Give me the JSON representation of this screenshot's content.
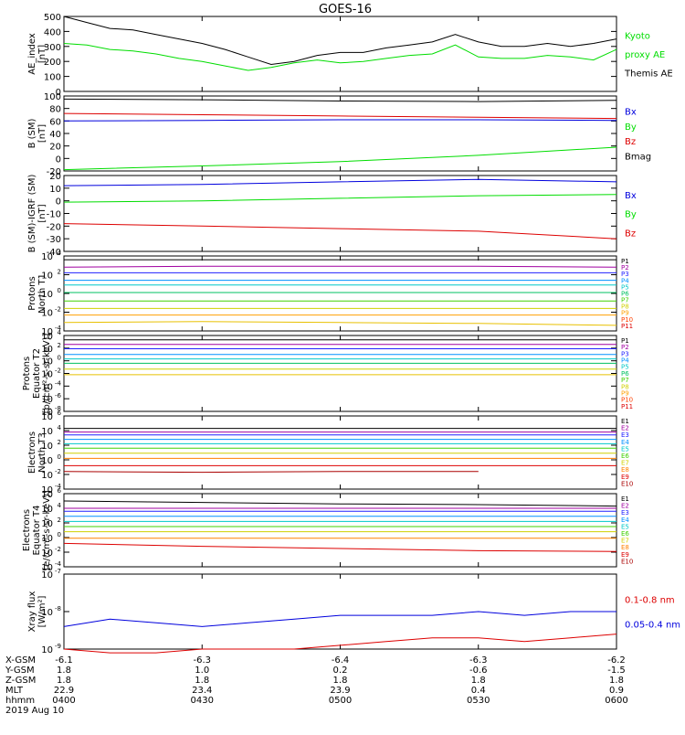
{
  "title": "GOES-16",
  "chart_data": [
    {
      "type": "line",
      "ylabel": "AE_index\n[nT]",
      "ylim": [
        0,
        500
      ],
      "yticks": [
        "0",
        "100",
        "200",
        "300",
        "400",
        "500"
      ],
      "x": [
        "0400",
        "0405",
        "0410",
        "0415",
        "0420",
        "0425",
        "0430",
        "0435",
        "0440",
        "0445",
        "0450",
        "0455",
        "0500",
        "0505",
        "0510",
        "0515",
        "0520",
        "0525",
        "0530",
        "0535",
        "0540",
        "0545",
        "0550",
        "0555",
        "0600"
      ],
      "series": [
        {
          "name": "Themis AE",
          "color": "#000000",
          "values": [
            500,
            460,
            420,
            410,
            380,
            350,
            320,
            280,
            230,
            180,
            200,
            240,
            260,
            260,
            290,
            310,
            330,
            380,
            330,
            300,
            300,
            320,
            300,
            320,
            350
          ]
        },
        {
          "name": "Kyoto proxy AE",
          "color": "#00dd00",
          "values": [
            320,
            310,
            280,
            270,
            250,
            220,
            200,
            170,
            140,
            160,
            190,
            210,
            190,
            200,
            220,
            240,
            250,
            310,
            230,
            220,
            220,
            240,
            230,
            210,
            280
          ]
        }
      ],
      "legend": [
        "Kyoto",
        "proxy AE",
        "Themis AE"
      ],
      "legend_colors": [
        "#00dd00",
        "#00dd00",
        "#000000"
      ]
    },
    {
      "type": "line",
      "ylabel": "B (SM)\n[nT]",
      "ylim": [
        -20,
        100
      ],
      "yticks": [
        "-20",
        "0",
        "20",
        "40",
        "60",
        "80",
        "100"
      ],
      "x": [
        "0400",
        "0430",
        "0500",
        "0530",
        "0600"
      ],
      "series": [
        {
          "name": "Bx",
          "color": "#0000dd",
          "values": [
            60,
            61,
            62,
            62,
            61
          ]
        },
        {
          "name": "By",
          "color": "#00dd00",
          "values": [
            -18,
            -12,
            -5,
            5,
            18
          ]
        },
        {
          "name": "Bz",
          "color": "#dd0000",
          "values": [
            72,
            70,
            68,
            66,
            64
          ]
        },
        {
          "name": "Bmag",
          "color": "#000000",
          "values": [
            95,
            94,
            92,
            91,
            93
          ]
        }
      ],
      "legend": [
        "Bx",
        "By",
        "Bz",
        "Bmag"
      ],
      "legend_colors": [
        "#0000dd",
        "#00dd00",
        "#dd0000",
        "#000000"
      ]
    },
    {
      "type": "line",
      "ylabel": "B (SM)-IGRF (SM)\n[nT]",
      "ylim": [
        -40,
        20
      ],
      "yticks": [
        "-40",
        "-30",
        "-20",
        "-10",
        "0",
        "10",
        "20"
      ],
      "x": [
        "0400",
        "0430",
        "0500",
        "0530",
        "0600"
      ],
      "series": [
        {
          "name": "Bx",
          "color": "#0000dd",
          "values": [
            12,
            13,
            15,
            17,
            15
          ]
        },
        {
          "name": "By",
          "color": "#00dd00",
          "values": [
            -1,
            0,
            2,
            4,
            5
          ]
        },
        {
          "name": "Bz",
          "color": "#dd0000",
          "values": [
            -18,
            -20,
            -22,
            -24,
            -30
          ]
        }
      ],
      "legend": [
        "Bx",
        "By",
        "Bz"
      ],
      "legend_colors": [
        "#0000dd",
        "#00dd00",
        "#dd0000"
      ]
    },
    {
      "type": "line",
      "ylabel": "Protons\nNorth T1",
      "yscale": "log",
      "ylim": [
        -4,
        4
      ],
      "ytick_labels": [
        [
          "10",
          "4"
        ],
        [
          "10",
          "2"
        ],
        [
          "10",
          "0"
        ],
        [
          "10",
          "-2"
        ],
        [
          "10",
          "-4"
        ]
      ],
      "x": [
        "0400",
        "0430",
        "0500",
        "0530",
        "0600"
      ],
      "series": [
        {
          "name": "P1",
          "color": "#000000",
          "values": [
            3.6,
            3.6,
            3.6,
            3.6,
            3.6
          ]
        },
        {
          "name": "P2",
          "color": "#a000a0",
          "values": [
            2.8,
            2.9,
            2.9,
            2.9,
            2.8
          ]
        },
        {
          "name": "P3",
          "color": "#2020ff",
          "values": [
            2.2,
            2.2,
            2.2,
            2.2,
            2.2
          ]
        },
        {
          "name": "P4",
          "color": "#0090ff",
          "values": [
            1.4,
            1.4,
            1.4,
            1.4,
            1.4
          ]
        },
        {
          "name": "P5",
          "color": "#00c8c8",
          "values": [
            0.9,
            0.9,
            0.9,
            0.9,
            0.9
          ]
        },
        {
          "name": "P6",
          "color": "#00c060",
          "values": [
            0.1,
            0.1,
            0.1,
            0.1,
            0.1
          ]
        },
        {
          "name": "P7",
          "color": "#40d000",
          "values": [
            -0.8,
            -0.8,
            -0.8,
            -0.8,
            -0.8
          ]
        },
        {
          "name": "P8",
          "color": "#d0d000",
          "values": [
            -1.6,
            -1.6,
            -1.6,
            -1.6,
            -1.6
          ]
        },
        {
          "name": "P9",
          "color": "#ffa000",
          "values": [
            -2.3,
            -2.3,
            -2.3,
            -2.3,
            -2.3
          ]
        },
        {
          "name": "P10",
          "color": "#e8c000",
          "values": [
            -3.1,
            -3.0,
            -3.1,
            -3.2,
            -3.4
          ]
        }
      ],
      "legend": [
        "P1",
        "P2",
        "P3",
        "P4",
        "P5",
        "P6",
        "P7",
        "P8",
        "P9",
        "P10",
        "P11"
      ],
      "legend_colors": [
        "#000000",
        "#a000a0",
        "#2020ff",
        "#0090ff",
        "#00c8c8",
        "#00c060",
        "#40d000",
        "#d0d000",
        "#ffa000",
        "#ff4000",
        "#dd0000"
      ]
    },
    {
      "type": "line",
      "ylabel": "Protons\nEquator T2\n[p/(cm²-s-sr-keV)]",
      "yscale": "log",
      "ylim": [
        -8,
        4
      ],
      "ytick_labels": [
        [
          "10",
          "4"
        ],
        [
          "10",
          "2"
        ],
        [
          "10",
          "0"
        ],
        [
          "10",
          "-2"
        ],
        [
          "10",
          "-4"
        ],
        [
          "10",
          "-6"
        ],
        [
          "10",
          "-8"
        ]
      ],
      "x": [
        "0400",
        "0430",
        "0500",
        "0530",
        "0600"
      ],
      "series": [
        {
          "name": "P1",
          "color": "#000000",
          "values": [
            3.3,
            3.3,
            3.3,
            3.3,
            3.3
          ]
        },
        {
          "name": "P2",
          "color": "#a000a0",
          "values": [
            2.6,
            2.6,
            2.6,
            2.6,
            2.6
          ]
        },
        {
          "name": "P3",
          "color": "#2020ff",
          "values": [
            1.9,
            1.9,
            1.9,
            1.9,
            1.9
          ]
        },
        {
          "name": "P4",
          "color": "#0090ff",
          "values": [
            1.0,
            1.0,
            1.0,
            1.0,
            1.0
          ]
        },
        {
          "name": "P5",
          "color": "#00c8c8",
          "values": [
            0.3,
            0.3,
            0.3,
            0.3,
            0.3
          ]
        },
        {
          "name": "P6",
          "color": "#00c060",
          "values": [
            -0.4,
            -0.4,
            -0.4,
            -0.4,
            -0.4
          ]
        },
        {
          "name": "P7",
          "color": "#d0d000",
          "values": [
            -1.3,
            -1.3,
            -1.3,
            -1.3,
            -1.3
          ]
        },
        {
          "name": "P8",
          "color": "#e8c000",
          "values": [
            -2.2,
            -2.2,
            -2.2,
            -2.2,
            -2.2
          ]
        }
      ],
      "legend": [
        "P1",
        "P2",
        "P3",
        "P4",
        "P5",
        "P6",
        "P7",
        "P8",
        "P9",
        "P10",
        "P11"
      ],
      "legend_colors": [
        "#000000",
        "#a000a0",
        "#2020ff",
        "#0090ff",
        "#00c8c8",
        "#00c060",
        "#40d000",
        "#d0d000",
        "#ffa000",
        "#ff4000",
        "#dd0000"
      ]
    },
    {
      "type": "line",
      "ylabel": "Electrons\nNorth T3",
      "yscale": "log",
      "ylim": [
        -4,
        6
      ],
      "ytick_labels": [
        [
          "10",
          "6"
        ],
        [
          "10",
          "4"
        ],
        [
          "10",
          "2"
        ],
        [
          "10",
          "0"
        ],
        [
          "10",
          "-2"
        ],
        [
          "10",
          "-4"
        ]
      ],
      "x": [
        "0400",
        "0430",
        "0500",
        "0530",
        "0600"
      ],
      "series": [
        {
          "name": "E1",
          "color": "#000000",
          "values": [
            4.3,
            4.3,
            4.3,
            4.3,
            4.3
          ]
        },
        {
          "name": "E2",
          "color": "#a000a0",
          "values": [
            3.8,
            3.8,
            3.8,
            3.8,
            3.8
          ]
        },
        {
          "name": "E3",
          "color": "#2020ff",
          "values": [
            3.4,
            3.4,
            3.4,
            3.4,
            3.4
          ]
        },
        {
          "name": "E4",
          "color": "#0090ff",
          "values": [
            2.8,
            2.8,
            2.8,
            2.8,
            2.8
          ]
        },
        {
          "name": "E5",
          "color": "#00c8c8",
          "values": [
            2.2,
            2.2,
            2.2,
            2.2,
            2.2
          ]
        },
        {
          "name": "E6",
          "color": "#40d000",
          "values": [
            1.6,
            1.6,
            1.6,
            1.6,
            1.6
          ]
        },
        {
          "name": "E7",
          "color": "#d0d000",
          "values": [
            0.9,
            0.9,
            0.9,
            0.9,
            0.9
          ]
        },
        {
          "name": "E8",
          "color": "#ff8000",
          "values": [
            0.2,
            0.2,
            0.2,
            0.2,
            0.2
          ]
        },
        {
          "name": "E9",
          "color": "#dd0000",
          "values": [
            -0.8,
            -0.8,
            -0.8,
            -0.8,
            -0.8
          ]
        },
        {
          "name": "E10",
          "color": "#aa0000",
          "values": [
            -1.6,
            -1.7,
            -1.6,
            -1.6,
            null
          ]
        }
      ],
      "legend": [
        "E1",
        "E2",
        "E3",
        "E4",
        "E5",
        "E6",
        "E7",
        "E8",
        "E9",
        "E10"
      ],
      "legend_colors": [
        "#000000",
        "#a000a0",
        "#2020ff",
        "#0090ff",
        "#00c8c8",
        "#40d000",
        "#d0d000",
        "#ff8000",
        "#dd0000",
        "#aa0000"
      ]
    },
    {
      "type": "line",
      "ylabel": "Electrons\nEquator T4\n[e/(cm²-s-sr-keV)]",
      "yscale": "log",
      "ylim": [
        -4,
        6
      ],
      "ytick_labels": [
        [
          "10",
          "6"
        ],
        [
          "10",
          "4"
        ],
        [
          "10",
          "2"
        ],
        [
          "10",
          "0"
        ],
        [
          "10",
          "-2"
        ],
        [
          "10",
          "-4"
        ]
      ],
      "x": [
        "0400",
        "0430",
        "0500",
        "0530",
        "0600"
      ],
      "series": [
        {
          "name": "E1",
          "color": "#000000",
          "values": [
            5.0,
            4.8,
            4.6,
            4.5,
            4.3
          ]
        },
        {
          "name": "E2",
          "color": "#a000a0",
          "values": [
            4.0,
            4.0,
            4.0,
            4.0,
            4.0
          ]
        },
        {
          "name": "E3",
          "color": "#2020ff",
          "values": [
            3.6,
            3.6,
            3.6,
            3.6,
            3.6
          ]
        },
        {
          "name": "E4",
          "color": "#0090ff",
          "values": [
            2.9,
            2.9,
            2.9,
            2.9,
            2.9
          ]
        },
        {
          "name": "E5",
          "color": "#00c8c8",
          "values": [
            2.2,
            2.2,
            2.2,
            2.2,
            2.2
          ]
        },
        {
          "name": "E6",
          "color": "#40d000",
          "values": [
            1.5,
            1.5,
            1.5,
            1.5,
            1.5
          ]
        },
        {
          "name": "E7",
          "color": "#d0d000",
          "values": [
            0.8,
            0.8,
            0.8,
            0.8,
            0.8
          ]
        },
        {
          "name": "E8",
          "color": "#ff8000",
          "values": [
            -0.1,
            -0.1,
            -0.1,
            -0.1,
            -0.1
          ]
        },
        {
          "name": "E9",
          "color": "#dd0000",
          "values": [
            -0.8,
            -1.2,
            -1.5,
            -1.8,
            -1.9
          ]
        }
      ],
      "legend": [
        "E1",
        "E2",
        "E3",
        "E4",
        "E5",
        "E6",
        "E7",
        "E8",
        "E9",
        "E10"
      ],
      "legend_colors": [
        "#000000",
        "#a000a0",
        "#2020ff",
        "#0090ff",
        "#00c8c8",
        "#40d000",
        "#d0d000",
        "#ff8000",
        "#dd0000",
        "#aa0000"
      ]
    },
    {
      "type": "line",
      "ylabel": "Xray flux\n[W/m²]",
      "yscale": "log",
      "ylim": [
        -9,
        -7
      ],
      "ytick_labels": [
        [
          "10",
          "-7"
        ],
        [
          "10",
          "-8"
        ],
        [
          "10",
          "-9"
        ]
      ],
      "x": [
        "0400",
        "0410",
        "0420",
        "0430",
        "0440",
        "0450",
        "0500",
        "0510",
        "0520",
        "0530",
        "0540",
        "0550",
        "0600"
      ],
      "series": [
        {
          "name": "0.05-0.4 nm",
          "color": "#0000dd",
          "values": [
            -8.4,
            -8.2,
            -8.3,
            -8.4,
            -8.3,
            -8.2,
            -8.1,
            -8.1,
            -8.1,
            -8.0,
            -8.1,
            -8.0,
            -8.0
          ]
        },
        {
          "name": "0.1-0.8 nm",
          "color": "#dd0000",
          "values": [
            -9.0,
            -9.1,
            -9.1,
            -9.0,
            -9.0,
            -9.0,
            -8.9,
            -8.8,
            -8.7,
            -8.7,
            -8.8,
            -8.7,
            -8.6
          ]
        }
      ],
      "legend": [
        "0.1-0.8 nm",
        "0.05-0.4 nm"
      ],
      "legend_colors": [
        "#dd0000",
        "#0000dd"
      ]
    }
  ],
  "x_axis": {
    "ticks": [
      "0400",
      "0430",
      "0500",
      "0530",
      "0600"
    ],
    "rows": [
      {
        "label": "X-GSM",
        "values": [
          "-6.1",
          "-6.3",
          "-6.4",
          "-6.3",
          "-6.2"
        ]
      },
      {
        "label": "Y-GSM",
        "values": [
          "1.8",
          "1.0",
          "0.2",
          "-0.6",
          "-1.5"
        ]
      },
      {
        "label": "Z-GSM",
        "values": [
          "1.8",
          "1.8",
          "1.8",
          "1.8",
          "1.8"
        ]
      },
      {
        "label": "MLT",
        "values": [
          "22.9",
          "23.4",
          "23.9",
          "0.4",
          "0.9"
        ]
      },
      {
        "label": "hhmm",
        "values": [
          "0400",
          "0430",
          "0500",
          "0530",
          "0600"
        ]
      }
    ],
    "date": "2019 Aug 10"
  }
}
